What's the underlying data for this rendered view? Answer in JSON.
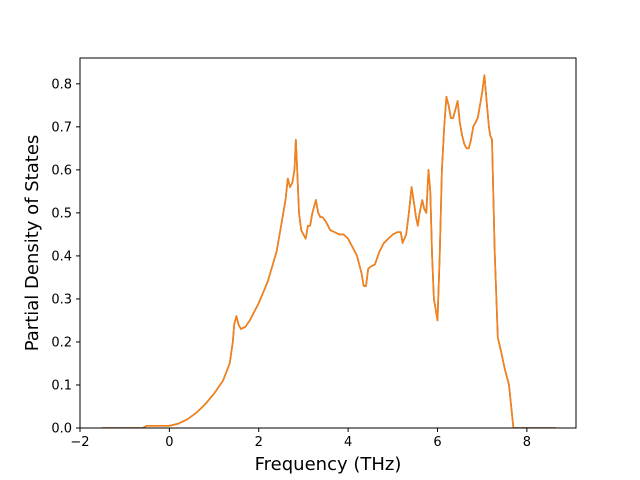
{
  "chart_data": {
    "type": "line",
    "title": "",
    "xlabel": "Frequency (THz)",
    "ylabel": "Partial Density of States",
    "xlim": [
      -2.0,
      9.1
    ],
    "ylim": [
      0.0,
      0.86
    ],
    "xticks": [
      -2,
      0,
      2,
      4,
      6,
      8
    ],
    "xtick_labels": [
      "−2",
      "0",
      "2",
      "4",
      "6",
      "8"
    ],
    "yticks": [
      0.0,
      0.1,
      0.2,
      0.3,
      0.4,
      0.5,
      0.6,
      0.7,
      0.8
    ],
    "ytick_labels": [
      "0.0",
      "0.1",
      "0.2",
      "0.3",
      "0.4",
      "0.5",
      "0.6",
      "0.7",
      "0.8"
    ],
    "grid": false,
    "legend": "none",
    "series": [
      {
        "color": "#1f77b4",
        "x": [
          -1.5,
          -0.6,
          -0.5,
          -0.3,
          0.0,
          0.2,
          0.4,
          0.6,
          0.8,
          1.0,
          1.2,
          1.35,
          1.42,
          1.45,
          1.5,
          1.55,
          1.6,
          1.7,
          1.8,
          2.0,
          2.2,
          2.4,
          2.5,
          2.6,
          2.65,
          2.7,
          2.75,
          2.8,
          2.83,
          2.86,
          2.9,
          2.95,
          3.0,
          3.05,
          3.1,
          3.15,
          3.2,
          3.28,
          3.33,
          3.38,
          3.43,
          3.5,
          3.55,
          3.6,
          3.7,
          3.8,
          3.9,
          4.0,
          4.1,
          4.2,
          4.3,
          4.35,
          4.4,
          4.45,
          4.5,
          4.6,
          4.7,
          4.8,
          4.9,
          5.0,
          5.1,
          5.18,
          5.22,
          5.3,
          5.36,
          5.42,
          5.48,
          5.52,
          5.56,
          5.6,
          5.66,
          5.7,
          5.75,
          5.8,
          5.84,
          5.88,
          5.92,
          6.0,
          6.05,
          6.1,
          6.15,
          6.2,
          6.25,
          6.3,
          6.35,
          6.4,
          6.45,
          6.5,
          6.55,
          6.6,
          6.65,
          6.7,
          6.75,
          6.8,
          6.9,
          7.0,
          7.05,
          7.1,
          7.15,
          7.18,
          7.22,
          7.28,
          7.35,
          7.42,
          7.5,
          7.6,
          7.7,
          7.8,
          7.9,
          8.65
        ],
        "values": [
          0.0,
          0.0,
          0.005,
          0.005,
          0.005,
          0.01,
          0.02,
          0.035,
          0.055,
          0.08,
          0.11,
          0.15,
          0.2,
          0.24,
          0.26,
          0.24,
          0.23,
          0.235,
          0.25,
          0.29,
          0.34,
          0.41,
          0.47,
          0.53,
          0.58,
          0.56,
          0.57,
          0.6,
          0.67,
          0.6,
          0.5,
          0.46,
          0.45,
          0.44,
          0.47,
          0.47,
          0.5,
          0.53,
          0.5,
          0.49,
          0.49,
          0.48,
          0.47,
          0.46,
          0.455,
          0.45,
          0.45,
          0.44,
          0.42,
          0.4,
          0.36,
          0.33,
          0.33,
          0.37,
          0.375,
          0.38,
          0.41,
          0.43,
          0.44,
          0.45,
          0.455,
          0.455,
          0.43,
          0.45,
          0.5,
          0.56,
          0.52,
          0.49,
          0.47,
          0.5,
          0.53,
          0.51,
          0.5,
          0.6,
          0.55,
          0.4,
          0.3,
          0.25,
          0.4,
          0.6,
          0.7,
          0.77,
          0.75,
          0.72,
          0.72,
          0.74,
          0.76,
          0.71,
          0.68,
          0.66,
          0.65,
          0.65,
          0.67,
          0.7,
          0.72,
          0.78,
          0.82,
          0.76,
          0.7,
          0.68,
          0.67,
          0.41,
          0.21,
          0.18,
          0.14,
          0.1,
          0.0,
          0.0,
          0.0,
          0.0
        ]
      },
      {
        "color": "#ff7f0e",
        "x": [
          -1.5,
          -0.6,
          -0.5,
          -0.3,
          0.0,
          0.2,
          0.4,
          0.6,
          0.8,
          1.0,
          1.2,
          1.35,
          1.42,
          1.45,
          1.5,
          1.55,
          1.6,
          1.7,
          1.8,
          2.0,
          2.2,
          2.4,
          2.5,
          2.6,
          2.65,
          2.7,
          2.75,
          2.8,
          2.83,
          2.86,
          2.9,
          2.95,
          3.0,
          3.05,
          3.1,
          3.15,
          3.2,
          3.28,
          3.33,
          3.38,
          3.43,
          3.5,
          3.55,
          3.6,
          3.7,
          3.8,
          3.9,
          4.0,
          4.1,
          4.2,
          4.3,
          4.35,
          4.4,
          4.45,
          4.5,
          4.6,
          4.7,
          4.8,
          4.9,
          5.0,
          5.1,
          5.18,
          5.22,
          5.3,
          5.36,
          5.42,
          5.48,
          5.52,
          5.56,
          5.6,
          5.66,
          5.7,
          5.75,
          5.8,
          5.84,
          5.88,
          5.92,
          6.0,
          6.05,
          6.1,
          6.15,
          6.2,
          6.25,
          6.3,
          6.35,
          6.4,
          6.45,
          6.5,
          6.55,
          6.6,
          6.65,
          6.7,
          6.75,
          6.8,
          6.9,
          7.0,
          7.05,
          7.1,
          7.15,
          7.18,
          7.22,
          7.28,
          7.35,
          7.42,
          7.5,
          7.6,
          7.7,
          7.8,
          7.9,
          8.65
        ],
        "values": [
          0.0,
          0.0,
          0.005,
          0.005,
          0.005,
          0.01,
          0.02,
          0.035,
          0.055,
          0.08,
          0.11,
          0.15,
          0.2,
          0.24,
          0.26,
          0.24,
          0.23,
          0.235,
          0.25,
          0.29,
          0.34,
          0.41,
          0.47,
          0.53,
          0.58,
          0.56,
          0.57,
          0.6,
          0.67,
          0.6,
          0.5,
          0.46,
          0.45,
          0.44,
          0.47,
          0.47,
          0.5,
          0.53,
          0.5,
          0.49,
          0.49,
          0.48,
          0.47,
          0.46,
          0.455,
          0.45,
          0.45,
          0.44,
          0.42,
          0.4,
          0.36,
          0.33,
          0.33,
          0.37,
          0.375,
          0.38,
          0.41,
          0.43,
          0.44,
          0.45,
          0.455,
          0.455,
          0.43,
          0.45,
          0.5,
          0.56,
          0.52,
          0.49,
          0.47,
          0.5,
          0.53,
          0.51,
          0.5,
          0.6,
          0.55,
          0.4,
          0.3,
          0.25,
          0.4,
          0.6,
          0.7,
          0.77,
          0.75,
          0.72,
          0.72,
          0.74,
          0.76,
          0.71,
          0.68,
          0.66,
          0.65,
          0.65,
          0.67,
          0.7,
          0.72,
          0.78,
          0.82,
          0.76,
          0.7,
          0.68,
          0.67,
          0.41,
          0.21,
          0.18,
          0.14,
          0.1,
          0.0,
          0.0,
          0.0,
          0.0
        ]
      }
    ]
  }
}
